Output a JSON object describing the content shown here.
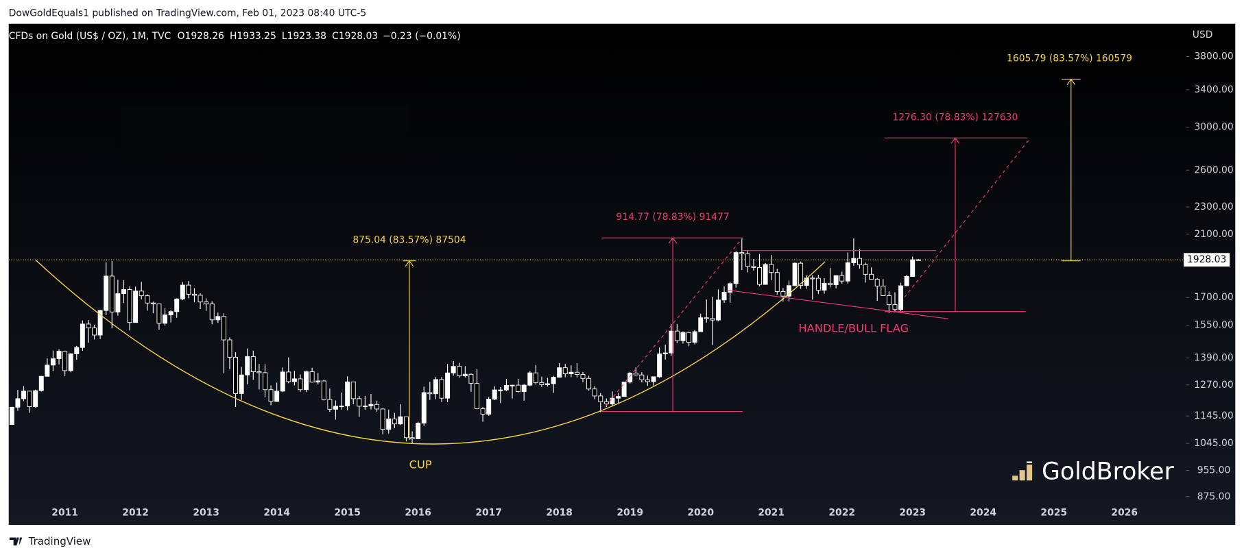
{
  "chart_data": {
    "type": "candlestick",
    "header": "DowGoldEquals1 published on TradingView.com, Feb 01, 2023 08:40 UTC-5",
    "symbol": "CFDs on Gold (US$ / OZ), 1M, TVC",
    "ohlc": [
      {
        "label": "O",
        "value": 1928.26
      },
      {
        "label": "H",
        "value": 1933.25
      },
      {
        "label": "L",
        "value": 1923.38
      },
      {
        "label": "C",
        "value": 1928.03
      }
    ],
    "change_label": "−0.23 (−0.01%)",
    "currency": "USD",
    "log_scale": true,
    "ylim": [
      862,
      4237
    ],
    "yticks": [
      {
        "value": 875,
        "label": "875.00"
      },
      {
        "value": 955,
        "label": "955.00"
      },
      {
        "value": 1045,
        "label": "1045.00"
      },
      {
        "value": 1145,
        "label": "1145.00"
      },
      {
        "value": 1270,
        "label": "1270.00"
      },
      {
        "value": 1390,
        "label": "1390.00"
      },
      {
        "value": 1550,
        "label": "1550.00"
      },
      {
        "value": 1700,
        "label": "1700.00"
      },
      {
        "value": 2100,
        "label": "2100.00"
      },
      {
        "value": 2300,
        "label": "2300.00"
      },
      {
        "value": 2600,
        "label": "2600.00"
      },
      {
        "value": 3000,
        "label": "3000.00"
      },
      {
        "value": 3400,
        "label": "3400.00"
      },
      {
        "value": 3800,
        "label": "3800.00"
      }
    ],
    "last_price": 1928.03,
    "up_color": "#ffffff",
    "down_color": "#000000",
    "categories": [
      null,
      null,
      null,
      null,
      null,
      null,
      null,
      null,
      null,
      "2011",
      null,
      null,
      null,
      null,
      null,
      null,
      null,
      null,
      null,
      null,
      null,
      "2012",
      null,
      null,
      null,
      null,
      null,
      null,
      null,
      null,
      null,
      null,
      null,
      "2013",
      null,
      null,
      null,
      null,
      null,
      null,
      null,
      null,
      null,
      null,
      null,
      "2014",
      null,
      null,
      null,
      null,
      null,
      null,
      null,
      null,
      null,
      null,
      null,
      "2015",
      null,
      null,
      null,
      null,
      null,
      null,
      null,
      null,
      null,
      null,
      null,
      "2016",
      null,
      null,
      null,
      null,
      null,
      null,
      null,
      null,
      null,
      null,
      null,
      "2017",
      null,
      null,
      null,
      null,
      null,
      null,
      null,
      null,
      null,
      null,
      null,
      "2018",
      null,
      null,
      null,
      null,
      null,
      null,
      null,
      null,
      null,
      null,
      null,
      "2019",
      null,
      null,
      null,
      null,
      null,
      null,
      null,
      null,
      null,
      null,
      null,
      "2020",
      null,
      null,
      null,
      null,
      null,
      null,
      null,
      null,
      null,
      null,
      null,
      "2021",
      null,
      null,
      null,
      null,
      null,
      null,
      null,
      null,
      null,
      null,
      null,
      "2022",
      null,
      null,
      null,
      null,
      null,
      null,
      null,
      null,
      null,
      null,
      null,
      "2023",
      null
    ],
    "future_years": [
      "2024",
      "2025",
      "2026"
    ],
    "open": [
      1113,
      1179,
      1213,
      1244,
      1181,
      1246,
      1307,
      1357,
      1386,
      1421,
      1332,
      1409,
      1439,
      1556,
      1536,
      1500,
      1628,
      1826,
      1620,
      1722,
      1746,
      1564,
      1737,
      1710,
      1669,
      1664,
      1560,
      1604,
      1622,
      1692,
      1772,
      1719,
      1713,
      1675,
      1664,
      1578,
      1596,
      1476,
      1393,
      1234,
      1313,
      1396,
      1327,
      1323,
      1250,
      1202,
      1244,
      1326,
      1284,
      1296,
      1250,
      1327,
      1282,
      1287,
      1210,
      1171,
      1183,
      1184,
      1283,
      1213,
      1183,
      1184,
      1190,
      1172,
      1095,
      1134,
      1115,
      1142,
      1065,
      1061,
      1118,
      1238,
      1233,
      1293,
      1215,
      1322,
      1351,
      1309,
      1316,
      1277,
      1173,
      1152,
      1211,
      1249,
      1249,
      1268,
      1269,
      1242,
      1269,
      1322,
      1280,
      1271,
      1275,
      1303,
      1345,
      1318,
      1325,
      1315,
      1298,
      1253,
      1224,
      1201,
      1192,
      1215,
      1222,
      1282,
      1321,
      1313,
      1292,
      1284,
      1305,
      1409,
      1413,
      1520,
      1472,
      1513,
      1464,
      1517,
      1589,
      1585,
      1577,
      1686,
      1730,
      1781,
      1975,
      1967,
      1886,
      1879,
      1776,
      1898,
      1848,
      1734,
      1708,
      1769,
      1906,
      1770,
      1814,
      1813,
      1742,
      1783,
      1774,
      1829,
      1796,
      1909,
      1937,
      1897,
      1837,
      1807,
      1766,
      1711,
      1660,
      1633,
      1768,
      1824,
      1928.26
    ],
    "high": [
      1180,
      1249,
      1265,
      1245,
      1250,
      1308,
      1388,
      1424,
      1431,
      1424,
      1412,
      1447,
      1575,
      1577,
      1553,
      1632,
      1911,
      1920,
      1804,
      1802,
      1763,
      1763,
      1791,
      1718,
      1677,
      1666,
      1640,
      1630,
      1695,
      1790,
      1796,
      1754,
      1724,
      1695,
      1679,
      1617,
      1613,
      1488,
      1417,
      1348,
      1434,
      1424,
      1362,
      1361,
      1268,
      1280,
      1346,
      1392,
      1331,
      1315,
      1332,
      1345,
      1322,
      1292,
      1255,
      1206,
      1238,
      1307,
      1284,
      1224,
      1224,
      1232,
      1205,
      1175,
      1170,
      1157,
      1191,
      1143,
      1088,
      1123,
      1263,
      1283,
      1304,
      1304,
      1362,
      1375,
      1367,
      1352,
      1320,
      1338,
      1180,
      1220,
      1264,
      1261,
      1296,
      1270,
      1296,
      1274,
      1331,
      1358,
      1306,
      1300,
      1309,
      1366,
      1362,
      1356,
      1365,
      1326,
      1310,
      1265,
      1236,
      1214,
      1243,
      1237,
      1284,
      1326,
      1347,
      1325,
      1310,
      1306,
      1439,
      1453,
      1555,
      1557,
      1518,
      1516,
      1525,
      1611,
      1689,
      1704,
      1747,
      1765,
      1789,
      1984,
      2075,
      1992,
      1933,
      1966,
      1907,
      1959,
      1871,
      1755,
      1798,
      1912,
      1917,
      1832,
      1831,
      1834,
      1814,
      1877,
      1831,
      1853,
      1976,
      2070,
      1998,
      1910,
      1879,
      1814,
      1808,
      1735,
      1730,
      1786,
      1833,
      1949,
      1933.25
    ],
    "low": [
      1111,
      1165,
      1203,
      1157,
      1177,
      1242,
      1306,
      1330,
      1360,
      1308,
      1325,
      1381,
      1423,
      1462,
      1478,
      1480,
      1603,
      1535,
      1600,
      1669,
      1523,
      1564,
      1689,
      1627,
      1613,
      1527,
      1548,
      1565,
      1589,
      1685,
      1696,
      1673,
      1636,
      1626,
      1555,
      1562,
      1321,
      1338,
      1180,
      1208,
      1272,
      1292,
      1251,
      1221,
      1187,
      1200,
      1240,
      1277,
      1268,
      1241,
      1240,
      1280,
      1272,
      1206,
      1161,
      1131,
      1170,
      1167,
      1191,
      1142,
      1169,
      1170,
      1162,
      1077,
      1080,
      1099,
      1111,
      1052,
      1046,
      1061,
      1108,
      1208,
      1211,
      1200,
      1199,
      1310,
      1301,
      1302,
      1241,
      1171,
      1123,
      1146,
      1207,
      1195,
      1244,
      1214,
      1237,
      1205,
      1265,
      1271,
      1261,
      1263,
      1237,
      1302,
      1303,
      1303,
      1302,
      1282,
      1246,
      1211,
      1160,
      1180,
      1182,
      1196,
      1221,
      1276,
      1311,
      1281,
      1266,
      1267,
      1300,
      1382,
      1400,
      1460,
      1458,
      1445,
      1454,
      1517,
      1564,
      1451,
      1570,
      1670,
      1671,
      1757,
      1863,
      1849,
      1860,
      1764,
      1775,
      1802,
      1717,
      1677,
      1678,
      1765,
      1750,
      1750,
      1688,
      1721,
      1722,
      1759,
      1753,
      1780,
      1781,
      1890,
      1872,
      1787,
      1805,
      1681,
      1709,
      1615,
      1618,
      1617,
      1765,
      1823,
      1923.38
    ],
    "close": [
      1179,
      1213,
      1244,
      1181,
      1246,
      1307,
      1357,
      1386,
      1421,
      1332,
      1409,
      1439,
      1556,
      1536,
      1500,
      1628,
      1826,
      1620,
      1722,
      1746,
      1564,
      1737,
      1710,
      1669,
      1664,
      1560,
      1604,
      1622,
      1692,
      1772,
      1719,
      1713,
      1675,
      1664,
      1578,
      1596,
      1476,
      1393,
      1234,
      1313,
      1396,
      1327,
      1323,
      1250,
      1202,
      1244,
      1326,
      1284,
      1296,
      1250,
      1327,
      1282,
      1287,
      1210,
      1171,
      1183,
      1184,
      1283,
      1213,
      1183,
      1184,
      1190,
      1172,
      1095,
      1134,
      1115,
      1142,
      1065,
      1061,
      1118,
      1238,
      1233,
      1293,
      1215,
      1322,
      1351,
      1309,
      1316,
      1277,
      1173,
      1152,
      1211,
      1249,
      1249,
      1268,
      1269,
      1242,
      1269,
      1322,
      1280,
      1271,
      1275,
      1303,
      1345,
      1318,
      1325,
      1315,
      1298,
      1253,
      1224,
      1201,
      1192,
      1215,
      1222,
      1282,
      1321,
      1313,
      1292,
      1284,
      1305,
      1409,
      1413,
      1520,
      1472,
      1513,
      1464,
      1517,
      1589,
      1585,
      1577,
      1686,
      1730,
      1781,
      1975,
      1967,
      1886,
      1879,
      1776,
      1898,
      1848,
      1734,
      1708,
      1769,
      1906,
      1770,
      1814,
      1813,
      1742,
      1783,
      1774,
      1829,
      1796,
      1909,
      1937,
      1897,
      1837,
      1807,
      1766,
      1711,
      1660,
      1633,
      1768,
      1824,
      1928.26,
      1928.03
    ],
    "annotations": [
      {
        "text": "875.04 (83.57%) 87504",
        "color": "#f5d547"
      },
      {
        "text": "914.77 (78.83%) 91477",
        "color": "#f23a6f"
      },
      {
        "text": "1276.30 (78.83%) 127630",
        "color": "#f23a6f"
      },
      {
        "text": "1605.79 (83.57%) 160579",
        "color": "#f5d547"
      },
      {
        "text": "CUP",
        "color": "#f5d547"
      },
      {
        "text": "HANDLE/BULL FLAG",
        "color": "#f23a6f"
      }
    ],
    "brand": "GoldBroker",
    "footer": "TradingView"
  }
}
